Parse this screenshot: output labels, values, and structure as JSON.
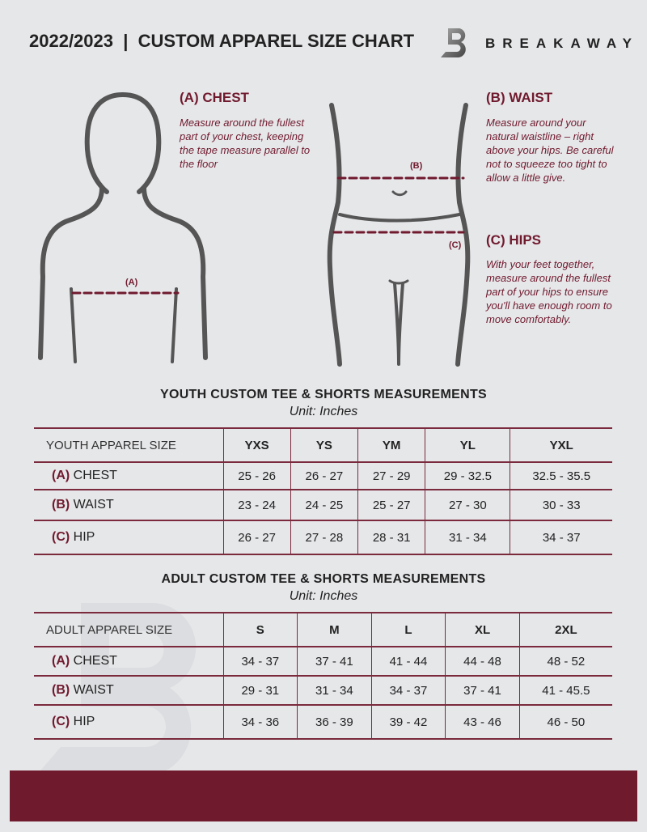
{
  "header": {
    "title": "2022/2023  |  CUSTOM APPAREL SIZE CHART",
    "brand": "BREAKAWAY",
    "logo_letter": "B"
  },
  "colors": {
    "accent": "#701a2e",
    "background": "#e6e7e9"
  },
  "chest": {
    "heading": "(A) CHEST",
    "text": "Measure around the fullest part of your chest, keeping the tape measure parallel to the floor",
    "marker": "(A)"
  },
  "waist": {
    "heading": "(B) WAIST",
    "text": "Measure around your natural waistline – right above your hips. Be careful not to squeeze too tight to allow a little give.",
    "marker": "(B)"
  },
  "hips": {
    "heading": "(C) HIPS",
    "text": "With your feet together, measure around the fullest part of your hips to ensure you'll have enough room to move comfortably.",
    "marker": "(C)"
  },
  "youth": {
    "title": "YOUTH CUSTOM TEE & SHORTS MEASUREMENTS",
    "unit": "Unit: Inches",
    "header": [
      "YOUTH APPAREL SIZE",
      "YXS",
      "YS",
      "YM",
      "YL",
      "YXL"
    ],
    "rows": [
      {
        "mark": "(A)",
        "label": "CHEST",
        "values": [
          "25 - 26",
          "26 - 27",
          "27 - 29",
          "29 - 32.5",
          "32.5 - 35.5"
        ]
      },
      {
        "mark": "(B)",
        "label": "WAIST",
        "values": [
          "23 - 24",
          "24 - 25",
          "25 - 27",
          "27 - 30",
          "30 - 33"
        ]
      },
      {
        "mark": "(C)",
        "label": "HIP",
        "values": [
          "26 - 27",
          "27 - 28",
          "28 - 31",
          "31 - 34",
          "34 - 37"
        ]
      }
    ]
  },
  "adult": {
    "title": "ADULT CUSTOM TEE & SHORTS MEASUREMENTS",
    "unit": "Unit: Inches",
    "header": [
      "ADULT APPAREL SIZE",
      "S",
      "M",
      "L",
      "XL",
      "2XL"
    ],
    "rows": [
      {
        "mark": "(A)",
        "label": "CHEST",
        "values": [
          "34 - 37",
          "37 - 41",
          "41 - 44",
          "44 - 48",
          "48 - 52"
        ]
      },
      {
        "mark": "(B)",
        "label": "WAIST",
        "values": [
          "29 - 31",
          "31 - 34",
          "34 - 37",
          "37 - 41",
          "41 - 45.5"
        ]
      },
      {
        "mark": "(C)",
        "label": "HIP",
        "values": [
          "34 - 36",
          "36 - 39",
          "39 - 42",
          "43 - 46",
          "46 - 50"
        ]
      }
    ]
  }
}
